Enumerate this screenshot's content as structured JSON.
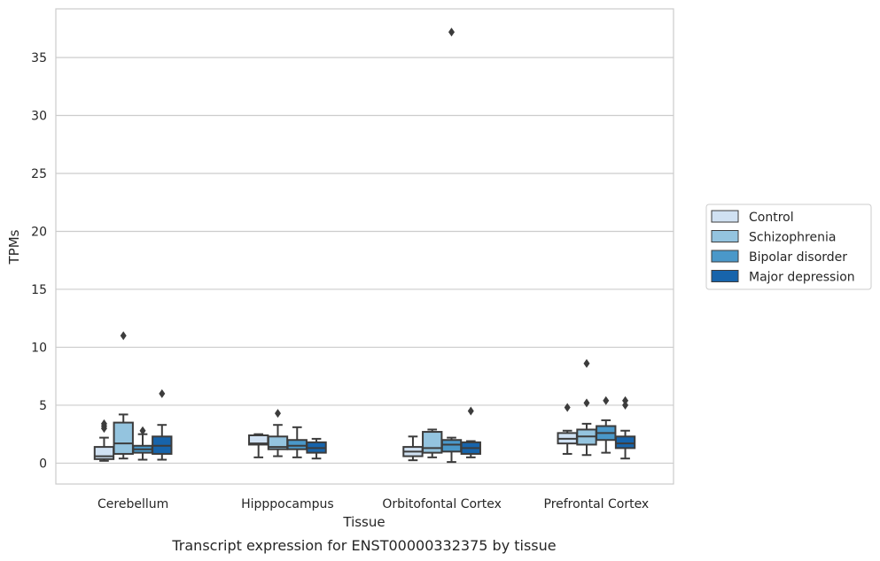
{
  "chart_data": {
    "type": "box",
    "caption": "Transcript expression for ENST00000332375 by tissue",
    "xlabel": "Tissue",
    "ylabel": "TPMs",
    "ylim": [
      -1.8,
      39.2
    ],
    "yticks": [
      0,
      5,
      10,
      15,
      20,
      25,
      30,
      35
    ],
    "grid": true,
    "legend_position": "right",
    "categories": [
      "Cerebellum",
      "Hipppocampus",
      "Orbitofontal Cortex",
      "Prefrontal Cortex"
    ],
    "series": [
      {
        "name": "Control",
        "color": "#d0e1f2",
        "boxes": [
          {
            "whislo": 0.2,
            "q1": 0.35,
            "med": 0.6,
            "q3": 1.4,
            "whishi": 2.2,
            "fliers": [
              3.0,
              3.2,
              3.4
            ]
          },
          {
            "whislo": 0.5,
            "q1": 1.6,
            "med": 1.7,
            "q3": 2.4,
            "whishi": 2.5,
            "fliers": []
          },
          {
            "whislo": 0.25,
            "q1": 0.6,
            "med": 1.0,
            "q3": 1.4,
            "whishi": 2.3,
            "fliers": []
          },
          {
            "whislo": 0.8,
            "q1": 1.7,
            "med": 2.1,
            "q3": 2.6,
            "whishi": 2.8,
            "fliers": [
              4.8
            ]
          }
        ]
      },
      {
        "name": "Schizophrenia",
        "color": "#94c4df",
        "boxes": [
          {
            "whislo": 0.4,
            "q1": 0.8,
            "med": 1.7,
            "q3": 3.5,
            "whishi": 4.2,
            "fliers": [
              11.0
            ]
          },
          {
            "whislo": 0.6,
            "q1": 1.2,
            "med": 1.4,
            "q3": 2.3,
            "whishi": 3.3,
            "fliers": [
              4.3
            ]
          },
          {
            "whislo": 0.5,
            "q1": 0.9,
            "med": 1.3,
            "q3": 2.7,
            "whishi": 2.9,
            "fliers": []
          },
          {
            "whislo": 0.7,
            "q1": 1.6,
            "med": 2.3,
            "q3": 2.9,
            "whishi": 3.4,
            "fliers": [
              5.2,
              8.6
            ]
          }
        ]
      },
      {
        "name": "Bipolar disorder",
        "color": "#4a98c9",
        "boxes": [
          {
            "whislo": 0.3,
            "q1": 0.9,
            "med": 1.2,
            "q3": 1.5,
            "whishi": 2.5,
            "fliers": [
              2.8
            ]
          },
          {
            "whislo": 0.5,
            "q1": 1.2,
            "med": 1.5,
            "q3": 2.0,
            "whishi": 3.1,
            "fliers": []
          },
          {
            "whislo": 0.1,
            "q1": 1.0,
            "med": 1.6,
            "q3": 2.0,
            "whishi": 2.2,
            "fliers": [
              37.2
            ]
          },
          {
            "whislo": 0.9,
            "q1": 2.0,
            "med": 2.6,
            "q3": 3.2,
            "whishi": 3.7,
            "fliers": [
              5.4
            ]
          }
        ]
      },
      {
        "name": "Major depression",
        "color": "#1764ab",
        "boxes": [
          {
            "whislo": 0.3,
            "q1": 0.8,
            "med": 1.5,
            "q3": 2.3,
            "whishi": 3.3,
            "fliers": [
              6.0
            ]
          },
          {
            "whislo": 0.4,
            "q1": 0.9,
            "med": 1.3,
            "q3": 1.8,
            "whishi": 2.1,
            "fliers": []
          },
          {
            "whislo": 0.5,
            "q1": 0.8,
            "med": 1.3,
            "q3": 1.8,
            "whishi": 1.9,
            "fliers": [
              4.5
            ]
          },
          {
            "whislo": 0.4,
            "q1": 1.3,
            "med": 1.7,
            "q3": 2.3,
            "whishi": 2.8,
            "fliers": [
              5.0,
              5.4
            ]
          }
        ]
      }
    ]
  }
}
